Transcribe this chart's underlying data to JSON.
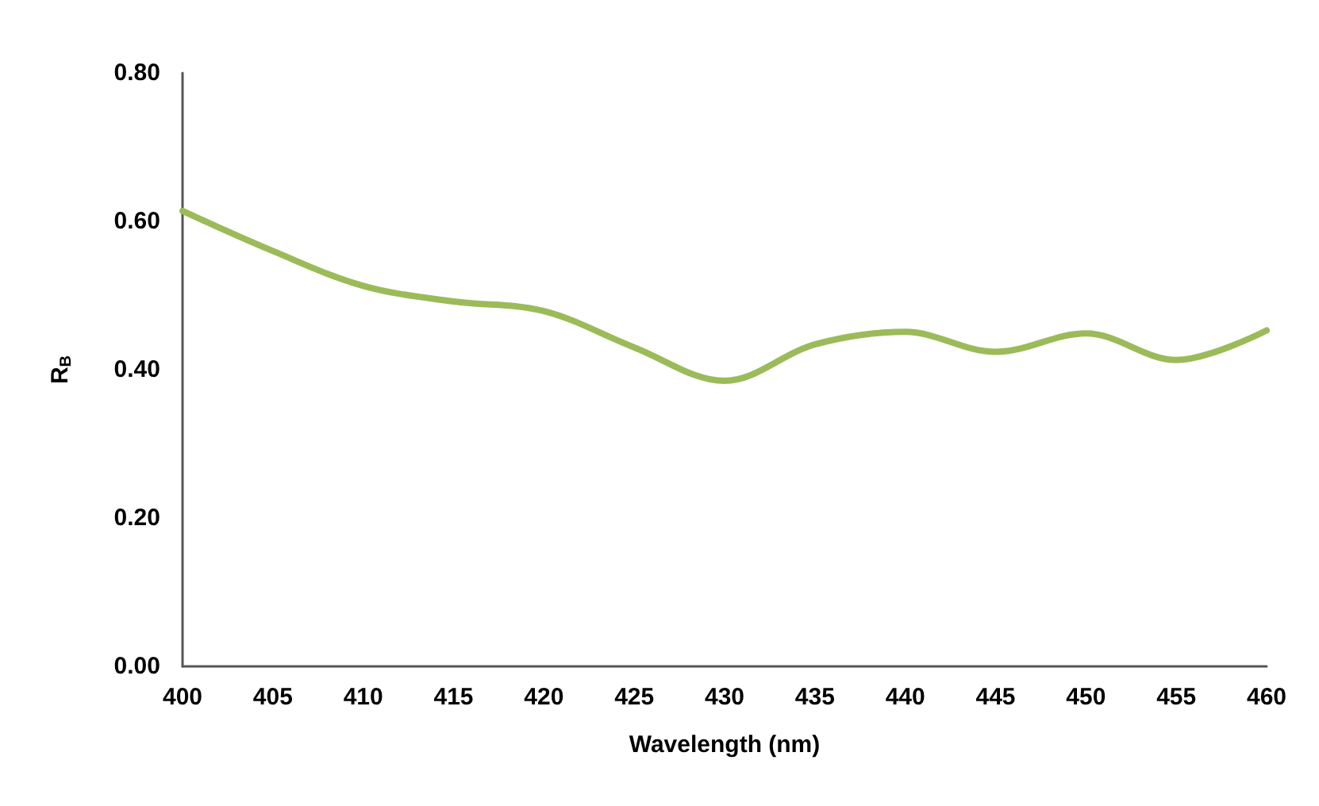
{
  "chart_data": {
    "type": "line",
    "xlabel": "Wavelength (nm)",
    "ylabel": "R$_{B}$",
    "x": [
      400,
      405,
      410,
      415,
      420,
      425,
      430,
      435,
      440,
      445,
      450,
      455,
      460
    ],
    "series": [
      {
        "color": "#9bbb59",
        "values": [
          0.614,
          0.56,
          0.513,
          0.492,
          0.479,
          0.43,
          0.385,
          0.434,
          0.451,
          0.424,
          0.449,
          0.413,
          0.453
        ]
      }
    ],
    "xlim": [
      400,
      460
    ],
    "xticks": [
      400,
      405,
      410,
      415,
      420,
      425,
      430,
      435,
      440,
      445,
      450,
      455,
      460
    ],
    "ylim": [
      0,
      0.8
    ],
    "yticks": [
      {
        "value": 0,
        "label": "0.00"
      },
      {
        "value": 0.2,
        "label": "0.20"
      },
      {
        "value": 0.4,
        "label": "0.40"
      },
      {
        "value": 0.6,
        "label": "0.60"
      },
      {
        "value": 0.8,
        "label": "0.80"
      }
    ],
    "grid": false,
    "marker": "none",
    "line_style": "solid"
  }
}
